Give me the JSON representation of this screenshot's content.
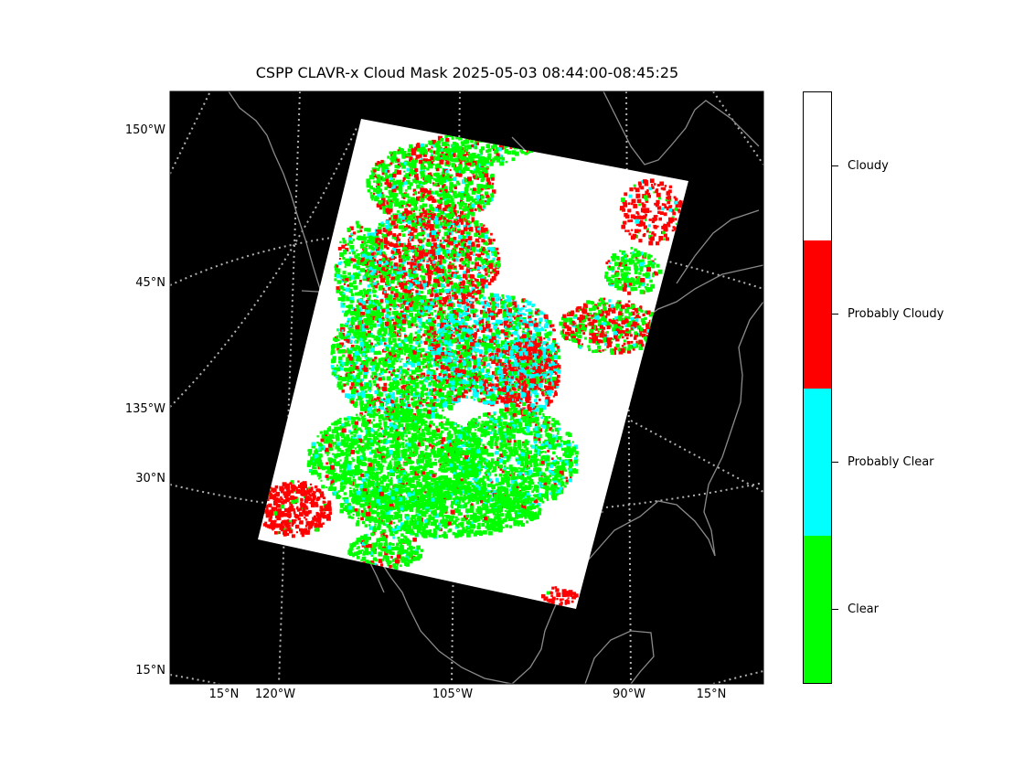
{
  "title": "CSPP CLAVR-x Cloud Mask 2025-05-03 08:44:00-08:45:25",
  "map": {
    "background_color": "#000000",
    "coastline_color": "#8a8a8a",
    "graticule_color": "#b0b0b0",
    "lat_labels": [
      "150°W",
      "45°N",
      "135°W",
      "30°N",
      "15°N"
    ],
    "lon_labels": [
      "15°N",
      "120°W",
      "105°W",
      "90°W",
      "15°N"
    ]
  },
  "legend": {
    "classes": [
      {
        "label": "Cloudy",
        "color": "#ffffff"
      },
      {
        "label": "Probably Cloudy",
        "color": "#ff0000"
      },
      {
        "label": "Probably Clear",
        "color": "#00ffff"
      },
      {
        "label": "Clear",
        "color": "#00ff00"
      }
    ]
  }
}
